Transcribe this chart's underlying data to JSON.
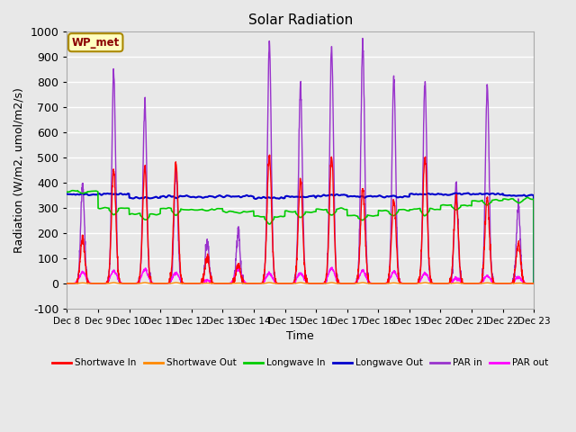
{
  "title": "Solar Radiation",
  "xlabel": "Time",
  "ylabel": "Radiation (W/m2, umol/m2/s)",
  "ylim": [
    -100,
    1000
  ],
  "yticks": [
    -100,
    0,
    100,
    200,
    300,
    400,
    500,
    600,
    700,
    800,
    900,
    1000
  ],
  "background_color": "#e8e8e8",
  "plot_background": "#e8e8e8",
  "grid_color": "white",
  "annotation_text": "WP_met",
  "annotation_bg": "#ffffc0",
  "annotation_border": "#aa8800",
  "legend_entries": [
    "Shortwave In",
    "Shortwave Out",
    "Longwave In",
    "Longwave Out",
    "PAR in",
    "PAR out"
  ],
  "legend_colors": [
    "#ff0000",
    "#ff8800",
    "#00cc00",
    "#0000cc",
    "#9933cc",
    "#ff00ff"
  ],
  "line_widths": [
    1.0,
    1.0,
    1.2,
    1.5,
    1.0,
    1.0
  ],
  "n_days": 15,
  "start_day": 8,
  "points_per_day": 144
}
